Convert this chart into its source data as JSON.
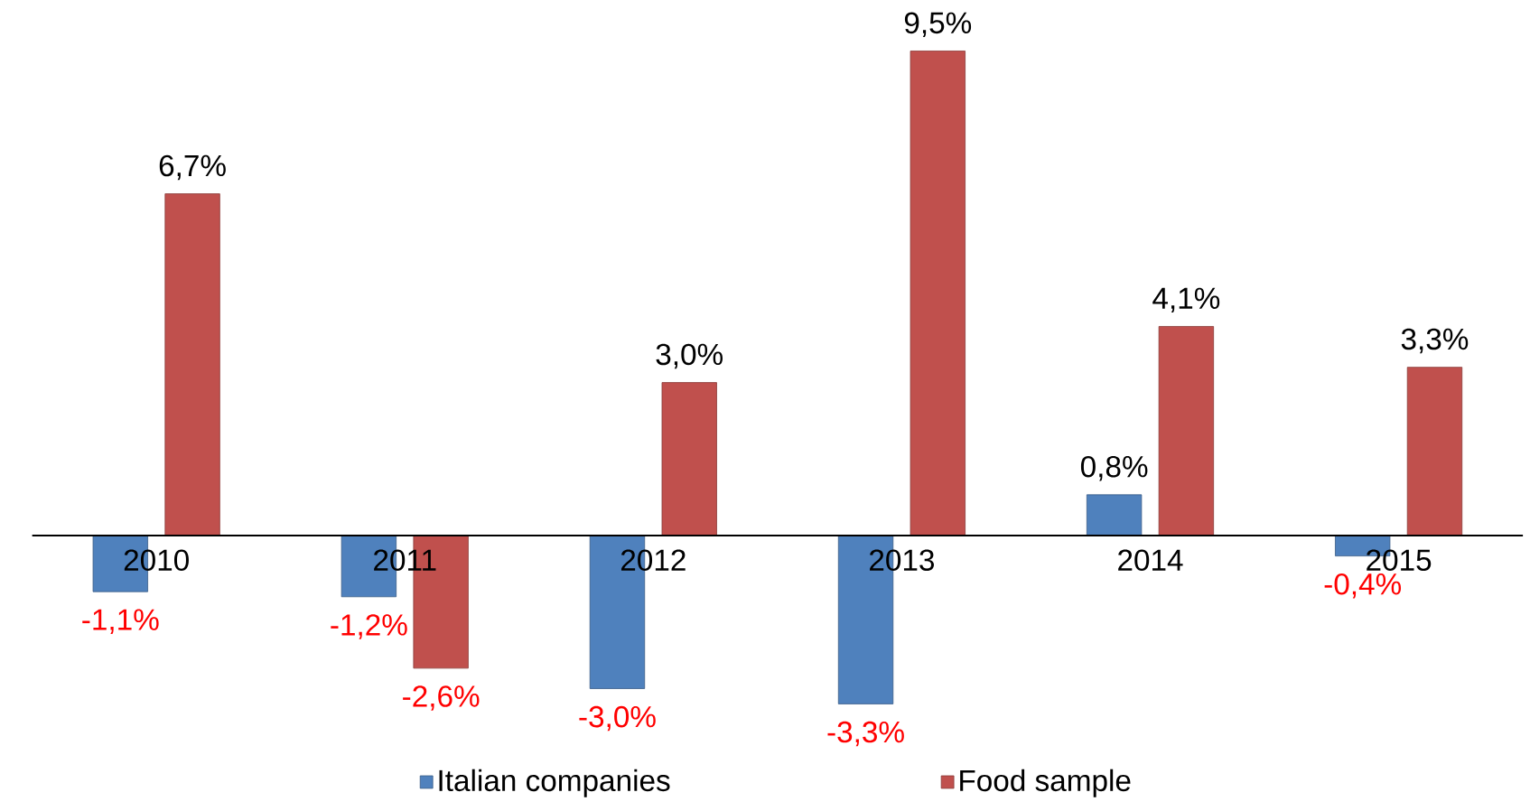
{
  "chart_data": {
    "type": "bar",
    "categories": [
      "2010",
      "2011",
      "2012",
      "2013",
      "2014",
      "2015"
    ],
    "series": [
      {
        "name": "Italian companies",
        "color": "#4f81bd",
        "values": [
          -1.1,
          -1.2,
          -3.0,
          -3.3,
          0.8,
          -0.4
        ],
        "value_labels": [
          "-1,1%",
          "-1,2%",
          "-3,0%",
          "-3,3%",
          "0,8%",
          "-0,4%"
        ]
      },
      {
        "name": "Food sample",
        "color": "#c0504d",
        "values": [
          6.7,
          -2.6,
          3.0,
          9.5,
          4.1,
          3.3
        ],
        "value_labels": [
          "6,7%",
          "-2,6%",
          "3,0%",
          "9,5%",
          "4,1%",
          "3,3%"
        ]
      }
    ],
    "legend": "bottom"
  }
}
